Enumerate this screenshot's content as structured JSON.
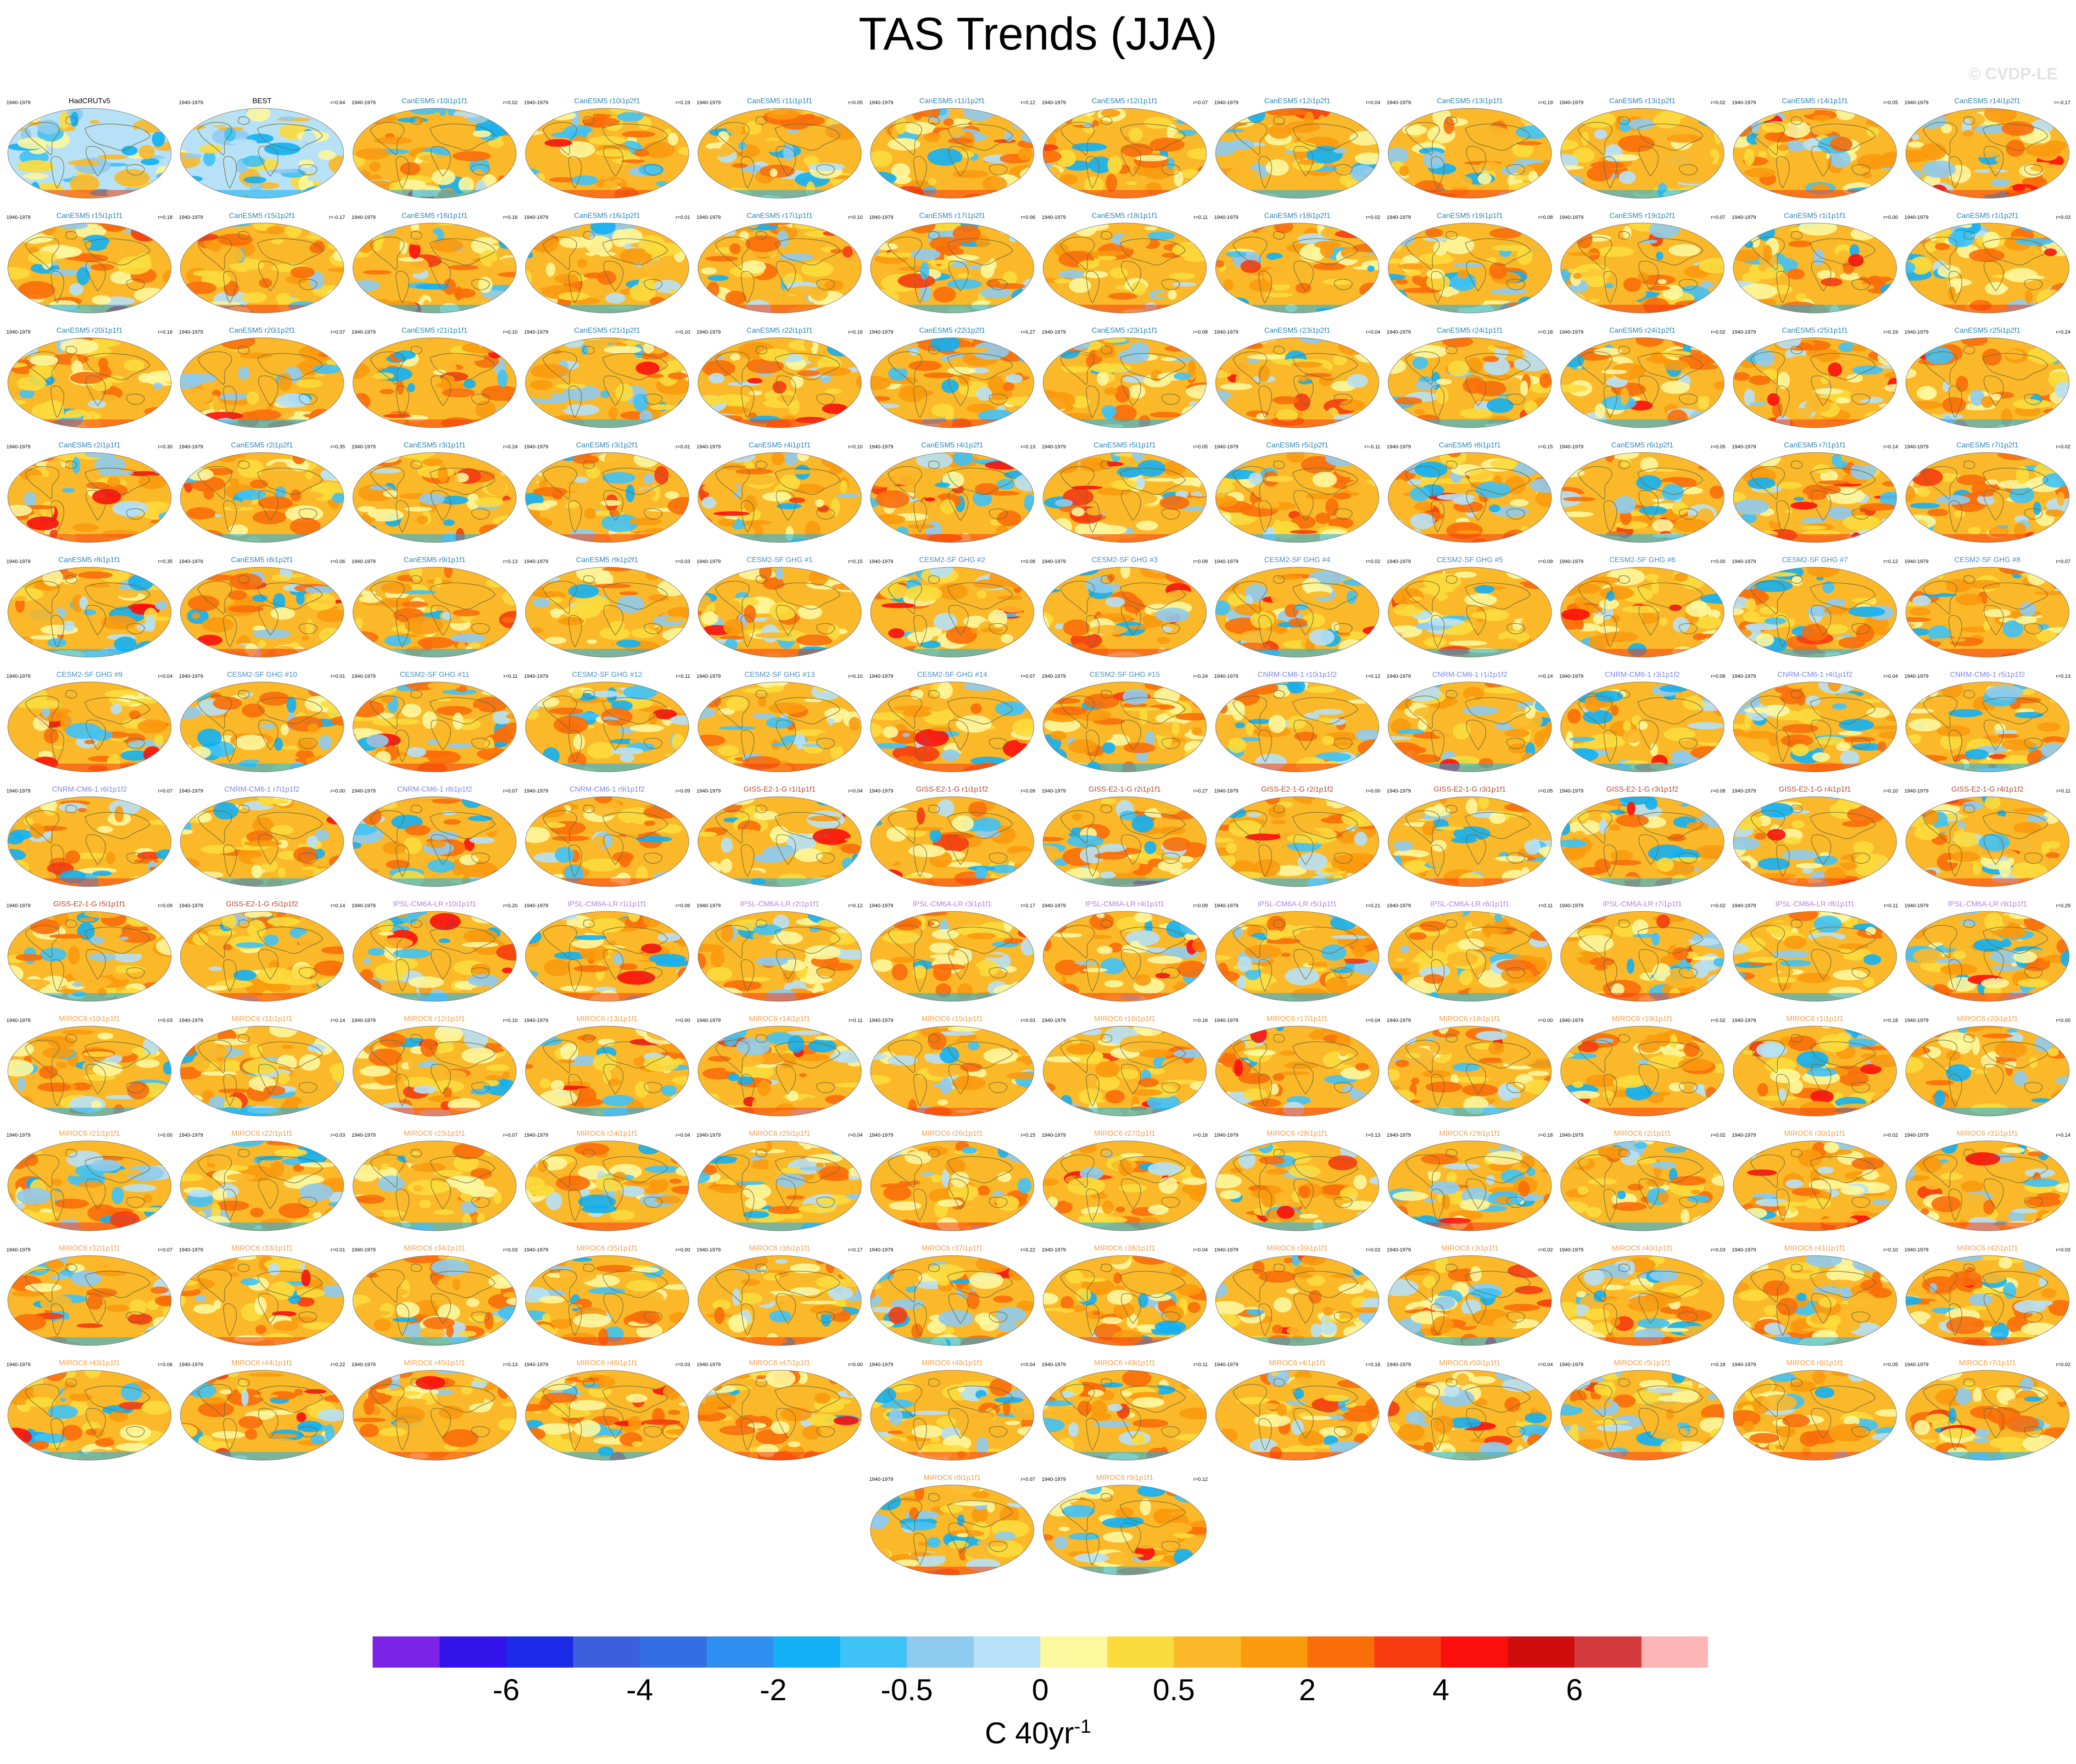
{
  "title": "TAS Trends (JJA)",
  "watermark": "© CVDP-LE",
  "period_label": "1940-1979",
  "units": {
    "base": "C 40yr",
    "exponent": "-1"
  },
  "chart_data": {
    "type": "heatmap",
    "title": "TAS Trends (JJA)",
    "period": "1940-1979",
    "colorbar": {
      "tick_labels": [
        "-6",
        "-4",
        "-2",
        "-0.5",
        "0",
        "0.5",
        "2",
        "4",
        "6"
      ],
      "units": "C 40yr-1",
      "colors": [
        "#7b24e8",
        "#3412ea",
        "#1b2ae6",
        "#3c5fdd",
        "#336fe4",
        "#2f8ff0",
        "#12b0f4",
        "#3fc2f6",
        "#8fcbee",
        "#b7e1f6",
        "#fdf79d",
        "#fcdb3c",
        "#fbb829",
        "#fb9a0d",
        "#f96e09",
        "#f73c0f",
        "#fc0f0c",
        "#d00d0d",
        "#d43a3c",
        "#fdb5b5"
      ]
    },
    "panels": [
      {
        "name": "HadCRUTv5",
        "r": "",
        "group": "obs"
      },
      {
        "name": "BEST",
        "r": "r=0.64",
        "group": "obs"
      },
      {
        "name": "CanESM5 r10i1p1f1",
        "r": "r=0.02",
        "group": "CanESM5"
      },
      {
        "name": "CanESM5 r10i1p2f1",
        "r": "r=0.19",
        "group": "CanESM5"
      },
      {
        "name": "CanESM5 r11i1p1f1",
        "r": "r=0.05",
        "group": "CanESM5"
      },
      {
        "name": "CanESM5 r11i1p2f1",
        "r": "r=0.12",
        "group": "CanESM5"
      },
      {
        "name": "CanESM5 r12i1p1f1",
        "r": "r=0.07",
        "group": "CanESM5"
      },
      {
        "name": "CanESM5 r12i1p2f1",
        "r": "r=0.04",
        "group": "CanESM5"
      },
      {
        "name": "CanESM5 r13i1p1f1",
        "r": "r=0.19",
        "group": "CanESM5"
      },
      {
        "name": "CanESM5 r13i1p2f1",
        "r": "r=0.02",
        "group": "CanESM5"
      },
      {
        "name": "CanESM5 r14i1p1f1",
        "r": "r=0.05",
        "group": "CanESM5"
      },
      {
        "name": "CanESM5 r14i1p2f1",
        "r": "r=-0.17",
        "group": "CanESM5"
      },
      {
        "name": "CanESM5 r15i1p1f1",
        "r": "r=0.18",
        "group": "CanESM5"
      },
      {
        "name": "CanESM5 r15i1p2f1",
        "r": "r=-0.17",
        "group": "CanESM5"
      },
      {
        "name": "CanESM5 r16i1p1f1",
        "r": "r=0.16",
        "group": "CanESM5"
      },
      {
        "name": "CanESM5 r16i1p2f1",
        "r": "r=0.01",
        "group": "CanESM5"
      },
      {
        "name": "CanESM5 r17i1p1f1",
        "r": "r=0.10",
        "group": "CanESM5"
      },
      {
        "name": "CanESM5 r17i1p2f1",
        "r": "r=0.06",
        "group": "CanESM5"
      },
      {
        "name": "CanESM5 r18i1p1f1",
        "r": "r=0.11",
        "group": "CanESM5"
      },
      {
        "name": "CanESM5 r18i1p2f1",
        "r": "r=0.02",
        "group": "CanESM5"
      },
      {
        "name": "CanESM5 r19i1p1f1",
        "r": "r=0.08",
        "group": "CanESM5"
      },
      {
        "name": "CanESM5 r19i1p2f1",
        "r": "r=0.07",
        "group": "CanESM5"
      },
      {
        "name": "CanESM5 r1i1p1f1",
        "r": "r=0.00",
        "group": "CanESM5"
      },
      {
        "name": "CanESM5 r1i1p2f1",
        "r": "r=0.03",
        "group": "CanESM5"
      },
      {
        "name": "CanESM5 r20i1p1f1",
        "r": "r=0.16",
        "group": "CanESM5"
      },
      {
        "name": "CanESM5 r20i1p2f1",
        "r": "r=0.07",
        "group": "CanESM5"
      },
      {
        "name": "CanESM5 r21i1p1f1",
        "r": "r=0.10",
        "group": "CanESM5"
      },
      {
        "name": "CanESM5 r21i1p2f1",
        "r": "r=0.10",
        "group": "CanESM5"
      },
      {
        "name": "CanESM5 r22i1p1f1",
        "r": "r=0.16",
        "group": "CanESM5"
      },
      {
        "name": "CanESM5 r22i1p2f1",
        "r": "r=0.27",
        "group": "CanESM5"
      },
      {
        "name": "CanESM5 r23i1p1f1",
        "r": "r=0.08",
        "group": "CanESM5"
      },
      {
        "name": "CanESM5 r23i1p2f1",
        "r": "r=0.04",
        "group": "CanESM5"
      },
      {
        "name": "CanESM5 r24i1p1f1",
        "r": "r=0.18",
        "group": "CanESM5"
      },
      {
        "name": "CanESM5 r24i1p2f1",
        "r": "r=0.02",
        "group": "CanESM5"
      },
      {
        "name": "CanESM5 r25i1p1f1",
        "r": "r=0.19",
        "group": "CanESM5"
      },
      {
        "name": "CanESM5 r25i1p2f1",
        "r": "r=0.24",
        "group": "CanESM5"
      },
      {
        "name": "CanESM5 r2i1p1f1",
        "r": "r=0.30",
        "group": "CanESM5"
      },
      {
        "name": "CanESM5 r2i1p2f1",
        "r": "r=0.35",
        "group": "CanESM5"
      },
      {
        "name": "CanESM5 r3i1p1f1",
        "r": "r=0.24",
        "group": "CanESM5"
      },
      {
        "name": "CanESM5 r3i1p2f1",
        "r": "r=0.01",
        "group": "CanESM5"
      },
      {
        "name": "CanESM5 r4i1p1f1",
        "r": "r=0.10",
        "group": "CanESM5"
      },
      {
        "name": "CanESM5 r4i1p2f1",
        "r": "r=0.13",
        "group": "CanESM5"
      },
      {
        "name": "CanESM5 r5i1p1f1",
        "r": "r=0.05",
        "group": "CanESM5"
      },
      {
        "name": "CanESM5 r5i1p2f1",
        "r": "r=-0.11",
        "group": "CanESM5"
      },
      {
        "name": "CanESM5 r6i1p1f1",
        "r": "r=0.15",
        "group": "CanESM5"
      },
      {
        "name": "CanESM5 r6i1p2f1",
        "r": "r=0.05",
        "group": "CanESM5"
      },
      {
        "name": "CanESM5 r7i1p1f1",
        "r": "r=0.14",
        "group": "CanESM5"
      },
      {
        "name": "CanESM5 r7i1p2f1",
        "r": "r=0.02",
        "group": "CanESM5"
      },
      {
        "name": "CanESM5 r8i1p1f1",
        "r": "r=0.35",
        "group": "CanESM5"
      },
      {
        "name": "CanESM5 r8i1p2f1",
        "r": "r=0.06",
        "group": "CanESM5"
      },
      {
        "name": "CanESM5 r9i1p1f1",
        "r": "r=0.13",
        "group": "CanESM5"
      },
      {
        "name": "CanESM5 r9i1p2f1",
        "r": "r=0.03",
        "group": "CanESM5"
      },
      {
        "name": "CESM2-SF GHG #1",
        "r": "r=0.15",
        "group": "CESM2"
      },
      {
        "name": "CESM2-SF GHG #2",
        "r": "r=0.08",
        "group": "CESM2"
      },
      {
        "name": "CESM2-SF GHG #3",
        "r": "r=0.09",
        "group": "CESM2"
      },
      {
        "name": "CESM2-SF GHG #4",
        "r": "r=0.02",
        "group": "CESM2"
      },
      {
        "name": "CESM2-SF GHG #5",
        "r": "r=0.09",
        "group": "CESM2"
      },
      {
        "name": "CESM2-SF GHG #6",
        "r": "r=0.00",
        "group": "CESM2"
      },
      {
        "name": "CESM2-SF GHG #7",
        "r": "r=0.12",
        "group": "CESM2"
      },
      {
        "name": "CESM2-SF GHG #8",
        "r": "r=0.07",
        "group": "CESM2"
      },
      {
        "name": "CESM2-SF GHG #9",
        "r": "r=0.04",
        "group": "CESM2"
      },
      {
        "name": "CESM2-SF GHG #10",
        "r": "r=0.01",
        "group": "CESM2"
      },
      {
        "name": "CESM2-SF GHG #11",
        "r": "r=0.11",
        "group": "CESM2"
      },
      {
        "name": "CESM2-SF GHG #12",
        "r": "r=0.11",
        "group": "CESM2"
      },
      {
        "name": "CESM2-SF GHG #13",
        "r": "r=0.10",
        "group": "CESM2"
      },
      {
        "name": "CESM2-SF GHG #14",
        "r": "r=0.07",
        "group": "CESM2"
      },
      {
        "name": "CESM2-SF GHG #15",
        "r": "r=0.24",
        "group": "CESM2"
      },
      {
        "name": "CNRM-CM6-1 r10i1p1f2",
        "r": "r=0.12",
        "group": "CNRM"
      },
      {
        "name": "CNRM-CM6-1 r1i1p1f2",
        "r": "r=0.14",
        "group": "CNRM"
      },
      {
        "name": "CNRM-CM6-1 r3i1p1f2",
        "r": "r=0.06",
        "group": "CNRM"
      },
      {
        "name": "CNRM-CM6-1 r4i1p1f2",
        "r": "r=0.04",
        "group": "CNRM"
      },
      {
        "name": "CNRM-CM6-1 r5i1p1f2",
        "r": "r=0.13",
        "group": "CNRM"
      },
      {
        "name": "CNRM-CM6-1 r6i1p1f2",
        "r": "r=0.07",
        "group": "CNRM"
      },
      {
        "name": "CNRM-CM6-1 r7i1p1f2",
        "r": "r=0.00",
        "group": "CNRM"
      },
      {
        "name": "CNRM-CM6-1 r8i1p1f2",
        "r": "r=0.07",
        "group": "CNRM"
      },
      {
        "name": "CNRM-CM6-1 r9i1p1f2",
        "r": "r=0.09",
        "group": "CNRM"
      },
      {
        "name": "GISS-E2-1-G r1i1p1f1",
        "r": "r=0.04",
        "group": "GISS"
      },
      {
        "name": "GISS-E2-1-G r1i1p1f2",
        "r": "r=0.09",
        "group": "GISS"
      },
      {
        "name": "GISS-E2-1-G r2i1p1f1",
        "r": "r=0.27",
        "group": "GISS"
      },
      {
        "name": "GISS-E2-1-G r2i1p1f2",
        "r": "r=0.00",
        "group": "GISS"
      },
      {
        "name": "GISS-E2-1-G r3i1p1f1",
        "r": "r=0.05",
        "group": "GISS"
      },
      {
        "name": "GISS-E2-1-G r3i1p1f2",
        "r": "r=0.08",
        "group": "GISS"
      },
      {
        "name": "GISS-E2-1-G r4i1p1f1",
        "r": "r=0.10",
        "group": "GISS"
      },
      {
        "name": "GISS-E2-1-G r4i1p1f2",
        "r": "r=0.11",
        "group": "GISS"
      },
      {
        "name": "GISS-E2-1-G r5i1p1f1",
        "r": "r=0.09",
        "group": "GISS"
      },
      {
        "name": "GISS-E2-1-G r5i1p1f2",
        "r": "r=0.14",
        "group": "GISS"
      },
      {
        "name": "IPSL-CM6A-LR r10i1p1f1",
        "r": "r=0.20",
        "group": "IPSL"
      },
      {
        "name": "IPSL-CM6A-LR r1i1p1f1",
        "r": "r=0.06",
        "group": "IPSL"
      },
      {
        "name": "IPSL-CM6A-LR r2i1p1f1",
        "r": "r=0.12",
        "group": "IPSL"
      },
      {
        "name": "IPSL-CM6A-LR r3i1p1f1",
        "r": "r=0.17",
        "group": "IPSL"
      },
      {
        "name": "IPSL-CM6A-LR r4i1p1f1",
        "r": "r=0.09",
        "group": "IPSL"
      },
      {
        "name": "IPSL-CM6A-LR r5i1p1f1",
        "r": "r=0.21",
        "group": "IPSL"
      },
      {
        "name": "IPSL-CM6A-LR r6i1p1f1",
        "r": "r=0.11",
        "group": "IPSL"
      },
      {
        "name": "IPSL-CM6A-LR r7i1p1f1",
        "r": "r=0.02",
        "group": "IPSL"
      },
      {
        "name": "IPSL-CM6A-LR r8i1p1f1",
        "r": "r=0.11",
        "group": "IPSL"
      },
      {
        "name": "IPSL-CM6A-LR r9i1p1f1",
        "r": "r=0.29",
        "group": "IPSL"
      },
      {
        "name": "MIROC6 r10i1p1f1",
        "r": "r=0.03",
        "group": "MIROC6"
      },
      {
        "name": "MIROC6 r11i1p1f1",
        "r": "r=0.14",
        "group": "MIROC6"
      },
      {
        "name": "MIROC6 r12i1p1f1",
        "r": "r=0.10",
        "group": "MIROC6"
      },
      {
        "name": "MIROC6 r13i1p1f1",
        "r": "r=0.00",
        "group": "MIROC6"
      },
      {
        "name": "MIROC6 r14i1p1f1",
        "r": "r=0.11",
        "group": "MIROC6"
      },
      {
        "name": "MIROC6 r15i1p1f1",
        "r": "r=0.03",
        "group": "MIROC6"
      },
      {
        "name": "MIROC6 r16i1p1f1",
        "r": "r=0.16",
        "group": "MIROC6"
      },
      {
        "name": "MIROC6 r17i1p1f1",
        "r": "r=0.04",
        "group": "MIROC6"
      },
      {
        "name": "MIROC6 r18i1p1f1",
        "r": "r=0.00",
        "group": "MIROC6"
      },
      {
        "name": "MIROC6 r19i1p1f1",
        "r": "r=0.02",
        "group": "MIROC6"
      },
      {
        "name": "MIROC6 r1i1p1f1",
        "r": "r=0.18",
        "group": "MIROC6"
      },
      {
        "name": "MIROC6 r20i1p1f1",
        "r": "r=0.00",
        "group": "MIROC6"
      },
      {
        "name": "MIROC6 r21i1p1f1",
        "r": "r=0.00",
        "group": "MIROC6"
      },
      {
        "name": "MIROC6 r22i1p1f1",
        "r": "r=0.03",
        "group": "MIROC6"
      },
      {
        "name": "MIROC6 r23i1p1f1",
        "r": "r=0.07",
        "group": "MIROC6"
      },
      {
        "name": "MIROC6 r24i1p1f1",
        "r": "r=0.04",
        "group": "MIROC6"
      },
      {
        "name": "MIROC6 r25i1p1f1",
        "r": "r=0.04",
        "group": "MIROC6"
      },
      {
        "name": "MIROC6 r26i1p1f1",
        "r": "r=0.15",
        "group": "MIROC6"
      },
      {
        "name": "MIROC6 r27i1p1f1",
        "r": "r=0.16",
        "group": "MIROC6"
      },
      {
        "name": "MIROC6 r28i1p1f1",
        "r": "r=0.13",
        "group": "MIROC6"
      },
      {
        "name": "MIROC6 r29i1p1f1",
        "r": "r=0.18",
        "group": "MIROC6"
      },
      {
        "name": "MIROC6 r2i1p1f1",
        "r": "r=0.02",
        "group": "MIROC6"
      },
      {
        "name": "MIROC6 r30i1p1f1",
        "r": "r=0.02",
        "group": "MIROC6"
      },
      {
        "name": "MIROC6 r31i1p1f1",
        "r": "r=0.14",
        "group": "MIROC6"
      },
      {
        "name": "MIROC6 r32i1p1f1",
        "r": "r=0.07",
        "group": "MIROC6"
      },
      {
        "name": "MIROC6 r33i1p1f1",
        "r": "r=0.01",
        "group": "MIROC6"
      },
      {
        "name": "MIROC6 r34i1p1f1",
        "r": "r=0.03",
        "group": "MIROC6"
      },
      {
        "name": "MIROC6 r35i1p1f1",
        "r": "r=0.00",
        "group": "MIROC6"
      },
      {
        "name": "MIROC6 r36i1p1f1",
        "r": "r=0.17",
        "group": "MIROC6"
      },
      {
        "name": "MIROC6 r37i1p1f1",
        "r": "r=0.22",
        "group": "MIROC6"
      },
      {
        "name": "MIROC6 r38i1p1f1",
        "r": "r=0.04",
        "group": "MIROC6"
      },
      {
        "name": "MIROC6 r39i1p1f1",
        "r": "r=0.02",
        "group": "MIROC6"
      },
      {
        "name": "MIROC6 r3i1p1f1",
        "r": "r=0.02",
        "group": "MIROC6"
      },
      {
        "name": "MIROC6 r40i1p1f1",
        "r": "r=0.03",
        "group": "MIROC6"
      },
      {
        "name": "MIROC6 r41i1p1f1",
        "r": "r=0.10",
        "group": "MIROC6"
      },
      {
        "name": "MIROC6 r42i1p1f1",
        "r": "r=0.03",
        "group": "MIROC6"
      },
      {
        "name": "MIROC6 r43i1p1f1",
        "r": "r=0.06",
        "group": "MIROC6"
      },
      {
        "name": "MIROC6 r44i1p1f1",
        "r": "r=0.22",
        "group": "MIROC6"
      },
      {
        "name": "MIROC6 r45i1p1f1",
        "r": "r=0.13",
        "group": "MIROC6"
      },
      {
        "name": "MIROC6 r46i1p1f1",
        "r": "r=0.03",
        "group": "MIROC6"
      },
      {
        "name": "MIROC6 r47i1p1f1",
        "r": "r=0.00",
        "group": "MIROC6"
      },
      {
        "name": "MIROC6 r48i1p1f1",
        "r": "r=0.04",
        "group": "MIROC6"
      },
      {
        "name": "MIROC6 r49i1p1f1",
        "r": "r=0.11",
        "group": "MIROC6"
      },
      {
        "name": "MIROC6 r4i1p1f1",
        "r": "r=0.18",
        "group": "MIROC6"
      },
      {
        "name": "MIROC6 r50i1p1f1",
        "r": "r=0.04",
        "group": "MIROC6"
      },
      {
        "name": "MIROC6 r5i1p1f1",
        "r": "r=0.18",
        "group": "MIROC6"
      },
      {
        "name": "MIROC6 r6i1p1f1",
        "r": "r=0.05",
        "group": "MIROC6"
      },
      {
        "name": "MIROC6 r7i1p1f1",
        "r": "r=0.02",
        "group": "MIROC6"
      },
      {
        "name": "MIROC6 r8i1p1f1",
        "r": "r=0.07",
        "group": "MIROC6"
      },
      {
        "name": "MIROC6 r9i1p1f1",
        "r": "r=0.12",
        "group": "MIROC6"
      }
    ]
  },
  "group_colors": {
    "obs": "#000000",
    "CanESM5": "#2a86b8",
    "CESM2": "#4a8fbf",
    "CNRM": "#7a86e8",
    "GISS": "#b8472e",
    "IPSL": "#b77de0",
    "MIROC6": "#f2a04a"
  },
  "map_palette": {
    "land_outline": "#6b6b3a",
    "warm": [
      "#fdf79d",
      "#fcdb3c",
      "#fbb829",
      "#fb9a0d",
      "#f96e09"
    ],
    "cool": [
      "#b7e1f6",
      "#8fcbee",
      "#3fc2f6",
      "#12b0f4",
      "#2f8ff0"
    ],
    "hot": [
      "#f73c0f",
      "#fc0f0c"
    ]
  }
}
